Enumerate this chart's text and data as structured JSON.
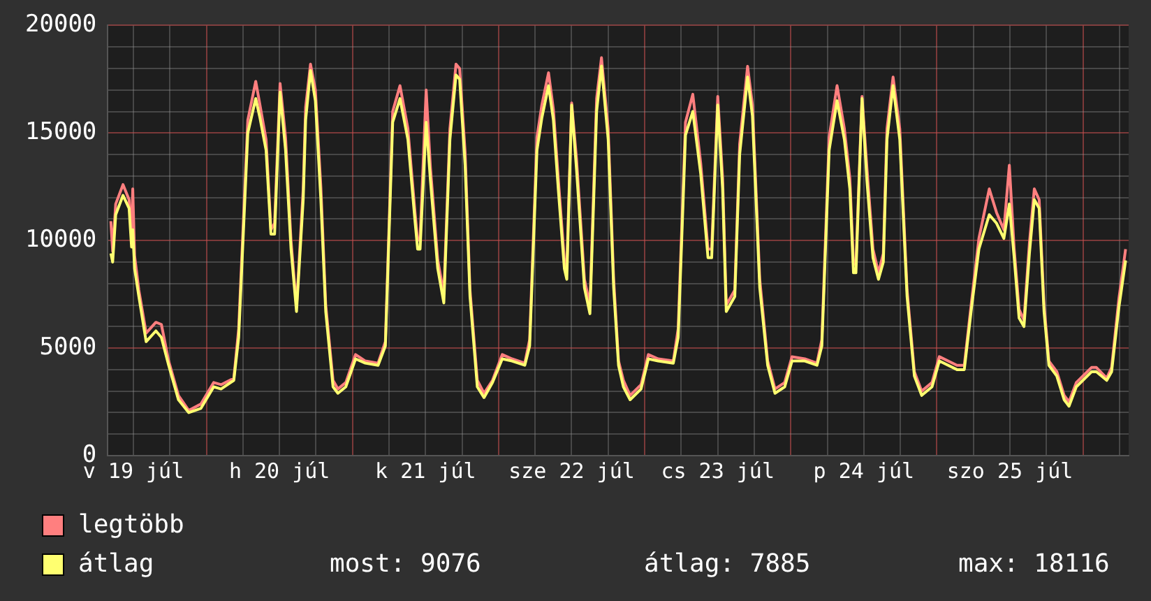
{
  "chart_data": {
    "type": "line",
    "x": [
      "--07-19T08:18",
      "--07-19T08:36",
      "--07-19T09:06",
      "--07-19T10:18",
      "--07-19T11:18",
      "--07-19T11:42",
      "--07-19T11:54",
      "--07-19T12:12",
      "--07-19T12:54",
      "--07-19T14:06",
      "--07-19T15:42",
      "--07-19T16:36",
      "--07-19T17:48",
      "--07-19T19:24",
      "--07-19T21:06",
      "--07-19T23:06",
      "--07-20T01:12",
      "--07-20T02:24",
      "--07-20T04:30",
      "--07-20T05:18",
      "--07-20T06:48",
      "--07-20T08:06",
      "--07-20T08:48",
      "--07-20T09:48",
      "--07-20T10:36",
      "--07-20T11:12",
      "--07-20T12:06",
      "--07-20T13:00",
      "--07-20T13:54",
      "--07-20T14:48",
      "--07-20T15:54",
      "--07-20T16:18",
      "--07-20T17:06",
      "--07-20T17:54",
      "--07-20T18:48",
      "--07-20T19:36",
      "--07-20T20:48",
      "--07-20T21:36",
      "--07-20T22:54",
      "--07-21T00:30",
      "--07-21T02:06",
      "--07-21T04:12",
      "--07-21T05:24",
      "--07-21T06:36",
      "--07-21T07:48",
      "--07-21T09:06",
      "--07-21T10:18",
      "--07-21T10:42",
      "--07-21T11:06",
      "--07-21T12:06",
      "--07-21T12:48",
      "--07-21T14:00",
      "--07-21T15:00",
      "--07-21T16:00",
      "--07-21T17:00",
      "--07-21T17:36",
      "--07-21T18:30",
      "--07-21T19:18",
      "--07-21T20:30",
      "--07-21T21:36",
      "--07-21T23:00",
      "--07-22T00:36",
      "--07-22T02:12",
      "--07-22T04:18",
      "--07-22T05:06",
      "--07-22T06:18",
      "--07-22T07:06",
      "--07-22T08:12",
      "--07-22T09:00",
      "--07-22T09:48",
      "--07-22T10:48",
      "--07-22T11:12",
      "--07-22T12:00",
      "--07-22T12:48",
      "--07-22T14:06",
      "--07-22T15:00",
      "--07-22T16:06",
      "--07-22T16:54",
      "--07-22T18:00",
      "--07-22T18:54",
      "--07-22T19:42",
      "--07-22T20:30",
      "--07-22T21:36",
      "--07-22T23:24",
      "--07-23T00:36",
      "--07-23T02:12",
      "--07-23T04:42",
      "--07-23T05:30",
      "--07-23T06:42",
      "--07-23T07:54",
      "--07-23T09:12",
      "--07-23T10:24",
      "--07-23T11:00",
      "--07-23T12:00",
      "--07-23T12:48",
      "--07-23T13:24",
      "--07-23T14:48",
      "--07-23T15:36",
      "--07-23T16:54",
      "--07-23T17:42",
      "--07-23T18:54",
      "--07-23T20:12",
      "--07-23T21:24",
      "--07-23T23:00",
      "--07-24T00:12",
      "--07-24T02:18",
      "--07-24T04:18",
      "--07-24T05:06",
      "--07-24T06:18",
      "--07-24T07:36",
      "--07-24T08:48",
      "--07-24T09:42",
      "--07-24T10:18",
      "--07-24T10:42",
      "--07-24T11:42",
      "--07-24T12:30",
      "--07-24T13:30",
      "--07-24T14:24",
      "--07-24T15:12",
      "--07-24T15:48",
      "--07-24T16:48",
      "--07-24T17:54",
      "--07-24T19:06",
      "--07-24T20:18",
      "--07-24T21:30",
      "--07-24T23:12",
      "--07-25T00:24",
      "--07-25T03:18",
      "--07-25T04:30",
      "--07-25T05:42",
      "--07-25T06:54",
      "--07-25T08:36",
      "--07-25T09:48",
      "--07-25T11:00",
      "--07-25T11:54",
      "--07-25T12:42",
      "--07-25T13:30",
      "--07-25T14:18",
      "--07-25T15:12",
      "--07-25T16:00",
      "--07-25T16:48",
      "--07-25T17:36",
      "--07-25T18:24",
      "--07-25T19:42",
      "--07-25T20:54",
      "--07-25T21:42",
      "--07-25T22:54",
      "--07-26T01:24",
      "--07-26T02:12",
      "--07-26T03:54",
      "--07-26T04:42",
      "--07-26T05:54",
      "--07-26T07:00"
    ],
    "series": [
      {
        "name": "legtöbb",
        "color": "#ff7f7f",
        "values": [
          10900,
          9500,
          11700,
          12600,
          11900,
          10100,
          12400,
          9300,
          7700,
          5700,
          6200,
          6100,
          4400,
          2800,
          2100,
          2400,
          3400,
          3300,
          3600,
          5900,
          15600,
          17400,
          16300,
          14700,
          10500,
          10800,
          17300,
          14800,
          10000,
          6900,
          12400,
          16200,
          18200,
          17000,
          12500,
          7000,
          3500,
          3100,
          3400,
          4700,
          4400,
          4300,
          5300,
          16000,
          17200,
          15200,
          11200,
          10000,
          10100,
          17000,
          13400,
          9100,
          7500,
          15200,
          18200,
          18000,
          14100,
          7700,
          3500,
          2900,
          3500,
          4700,
          4500,
          4300,
          5400,
          14800,
          16300,
          17800,
          16100,
          12900,
          9100,
          8700,
          16400,
          13800,
          8200,
          7000,
          16600,
          18500,
          15200,
          8200,
          4400,
          3500,
          2800,
          3300,
          4700,
          4500,
          4400,
          5900,
          15500,
          16800,
          13600,
          9600,
          9600,
          16700,
          12900,
          7000,
          7700,
          14500,
          18100,
          16300,
          8200,
          4400,
          3100,
          3400,
          4600,
          4500,
          4300,
          5400,
          14800,
          17200,
          15200,
          12900,
          8900,
          8900,
          16700,
          13400,
          9600,
          8500,
          9400,
          15200,
          17600,
          15200,
          7700,
          3900,
          3000,
          3400,
          4600,
          4200,
          4200,
          7200,
          10100,
          12400,
          11300,
          10500,
          13500,
          9600,
          6800,
          6300,
          9900,
          12400,
          11900,
          7000,
          4400,
          3900,
          2800,
          2500,
          3400,
          4100,
          4100,
          3600,
          4100,
          7300,
          9600
        ]
      },
      {
        "name": "átlag",
        "color": "#ffff70",
        "values": [
          9400,
          9000,
          11200,
          12100,
          11500,
          9700,
          10500,
          8700,
          7400,
          5300,
          5800,
          5500,
          4200,
          2600,
          2000,
          2200,
          3200,
          3100,
          3500,
          5500,
          15000,
          16600,
          15700,
          14200,
          10300,
          10300,
          16900,
          14200,
          9600,
          6700,
          11900,
          15600,
          17900,
          16500,
          11900,
          6700,
          3200,
          2900,
          3200,
          4500,
          4300,
          4200,
          5100,
          15500,
          16600,
          14700,
          10800,
          9600,
          9600,
          15500,
          12800,
          8700,
          7100,
          14700,
          17700,
          17500,
          13500,
          7400,
          3200,
          2700,
          3400,
          4500,
          4400,
          4200,
          5100,
          14200,
          15700,
          17200,
          15600,
          12400,
          8700,
          8200,
          16300,
          13300,
          7800,
          6600,
          16000,
          18116,
          14700,
          7800,
          4200,
          3200,
          2600,
          3100,
          4500,
          4400,
          4300,
          5500,
          14900,
          16000,
          13100,
          9200,
          9200,
          16300,
          12400,
          6700,
          7400,
          14000,
          17600,
          15800,
          7800,
          4200,
          2900,
          3200,
          4400,
          4400,
          4200,
          5100,
          14200,
          16500,
          14700,
          12400,
          8500,
          8500,
          16600,
          12800,
          9200,
          8200,
          9000,
          14700,
          17200,
          14700,
          7400,
          3700,
          2800,
          3200,
          4400,
          4000,
          4000,
          6900,
          9600,
          11200,
          10800,
          10100,
          11700,
          9200,
          6400,
          6000,
          9400,
          11900,
          11500,
          6700,
          4200,
          3700,
          2600,
          2300,
          3200,
          3900,
          3900,
          3500,
          3900,
          6900,
          9076
        ]
      }
    ],
    "xlim": [
      "--07-19T07:48",
      "--07-26T07:30"
    ],
    "xticks": [
      {
        "value": "--07-19T12:00",
        "label": "v 19 júl"
      },
      {
        "value": "--07-19T18:00",
        "label": null
      },
      {
        "value": "--07-20T00:00",
        "label": null
      },
      {
        "value": "--07-20T06:00",
        "label": null
      },
      {
        "value": "--07-20T12:00",
        "label": "h 20 júl"
      },
      {
        "value": "--07-20T18:00",
        "label": null
      },
      {
        "value": "--07-21T00:00",
        "label": null
      },
      {
        "value": "--07-21T06:00",
        "label": null
      },
      {
        "value": "--07-21T12:00",
        "label": "k 21 júl"
      },
      {
        "value": "--07-21T18:00",
        "label": null
      },
      {
        "value": "--07-22T00:00",
        "label": null
      },
      {
        "value": "--07-22T06:00",
        "label": null
      },
      {
        "value": "--07-22T12:00",
        "label": "sze 22 júl"
      },
      {
        "value": "--07-22T18:00",
        "label": null
      },
      {
        "value": "--07-23T00:00",
        "label": null
      },
      {
        "value": "--07-23T06:00",
        "label": null
      },
      {
        "value": "--07-23T12:00",
        "label": "cs 23 júl"
      },
      {
        "value": "--07-23T18:00",
        "label": null
      },
      {
        "value": "--07-24T00:00",
        "label": null
      },
      {
        "value": "--07-24T06:00",
        "label": null
      },
      {
        "value": "--07-24T12:00",
        "label": "p 24 júl"
      },
      {
        "value": "--07-24T18:00",
        "label": null
      },
      {
        "value": "--07-25T00:00",
        "label": null
      },
      {
        "value": "--07-25T06:00",
        "label": null
      },
      {
        "value": "--07-25T12:00",
        "label": "szo 25 júl"
      },
      {
        "value": "--07-25T18:00",
        "label": null
      },
      {
        "value": "--07-26T00:00",
        "label": null
      },
      {
        "value": "--07-26T06:00",
        "label": null
      }
    ],
    "ylim": [
      0,
      20000
    ],
    "yticks": [
      0,
      {
        "value": 1000,
        "label": null
      },
      {
        "value": 2000,
        "label": null
      },
      {
        "value": 3000,
        "label": null
      },
      {
        "value": 4000,
        "label": null
      },
      5000,
      {
        "value": 6000,
        "label": null
      },
      {
        "value": 7000,
        "label": null
      },
      {
        "value": 8000,
        "label": null
      },
      {
        "value": 9000,
        "label": null
      },
      10000,
      {
        "value": 11000,
        "label": null
      },
      {
        "value": 12000,
        "label": null
      },
      {
        "value": 13000,
        "label": null
      },
      {
        "value": 14000,
        "label": null
      },
      15000,
      {
        "value": 16000,
        "label": null
      },
      {
        "value": 17000,
        "label": null
      },
      {
        "value": 18000,
        "label": null
      },
      {
        "value": 19000,
        "label": null
      },
      20000
    ],
    "grid": true,
    "legend": "bottom left",
    "marker": "none",
    "line_style": "solid",
    "annotations": [
      "most: 9076",
      "átlag: 7885",
      "max: 18116"
    ]
  }
}
